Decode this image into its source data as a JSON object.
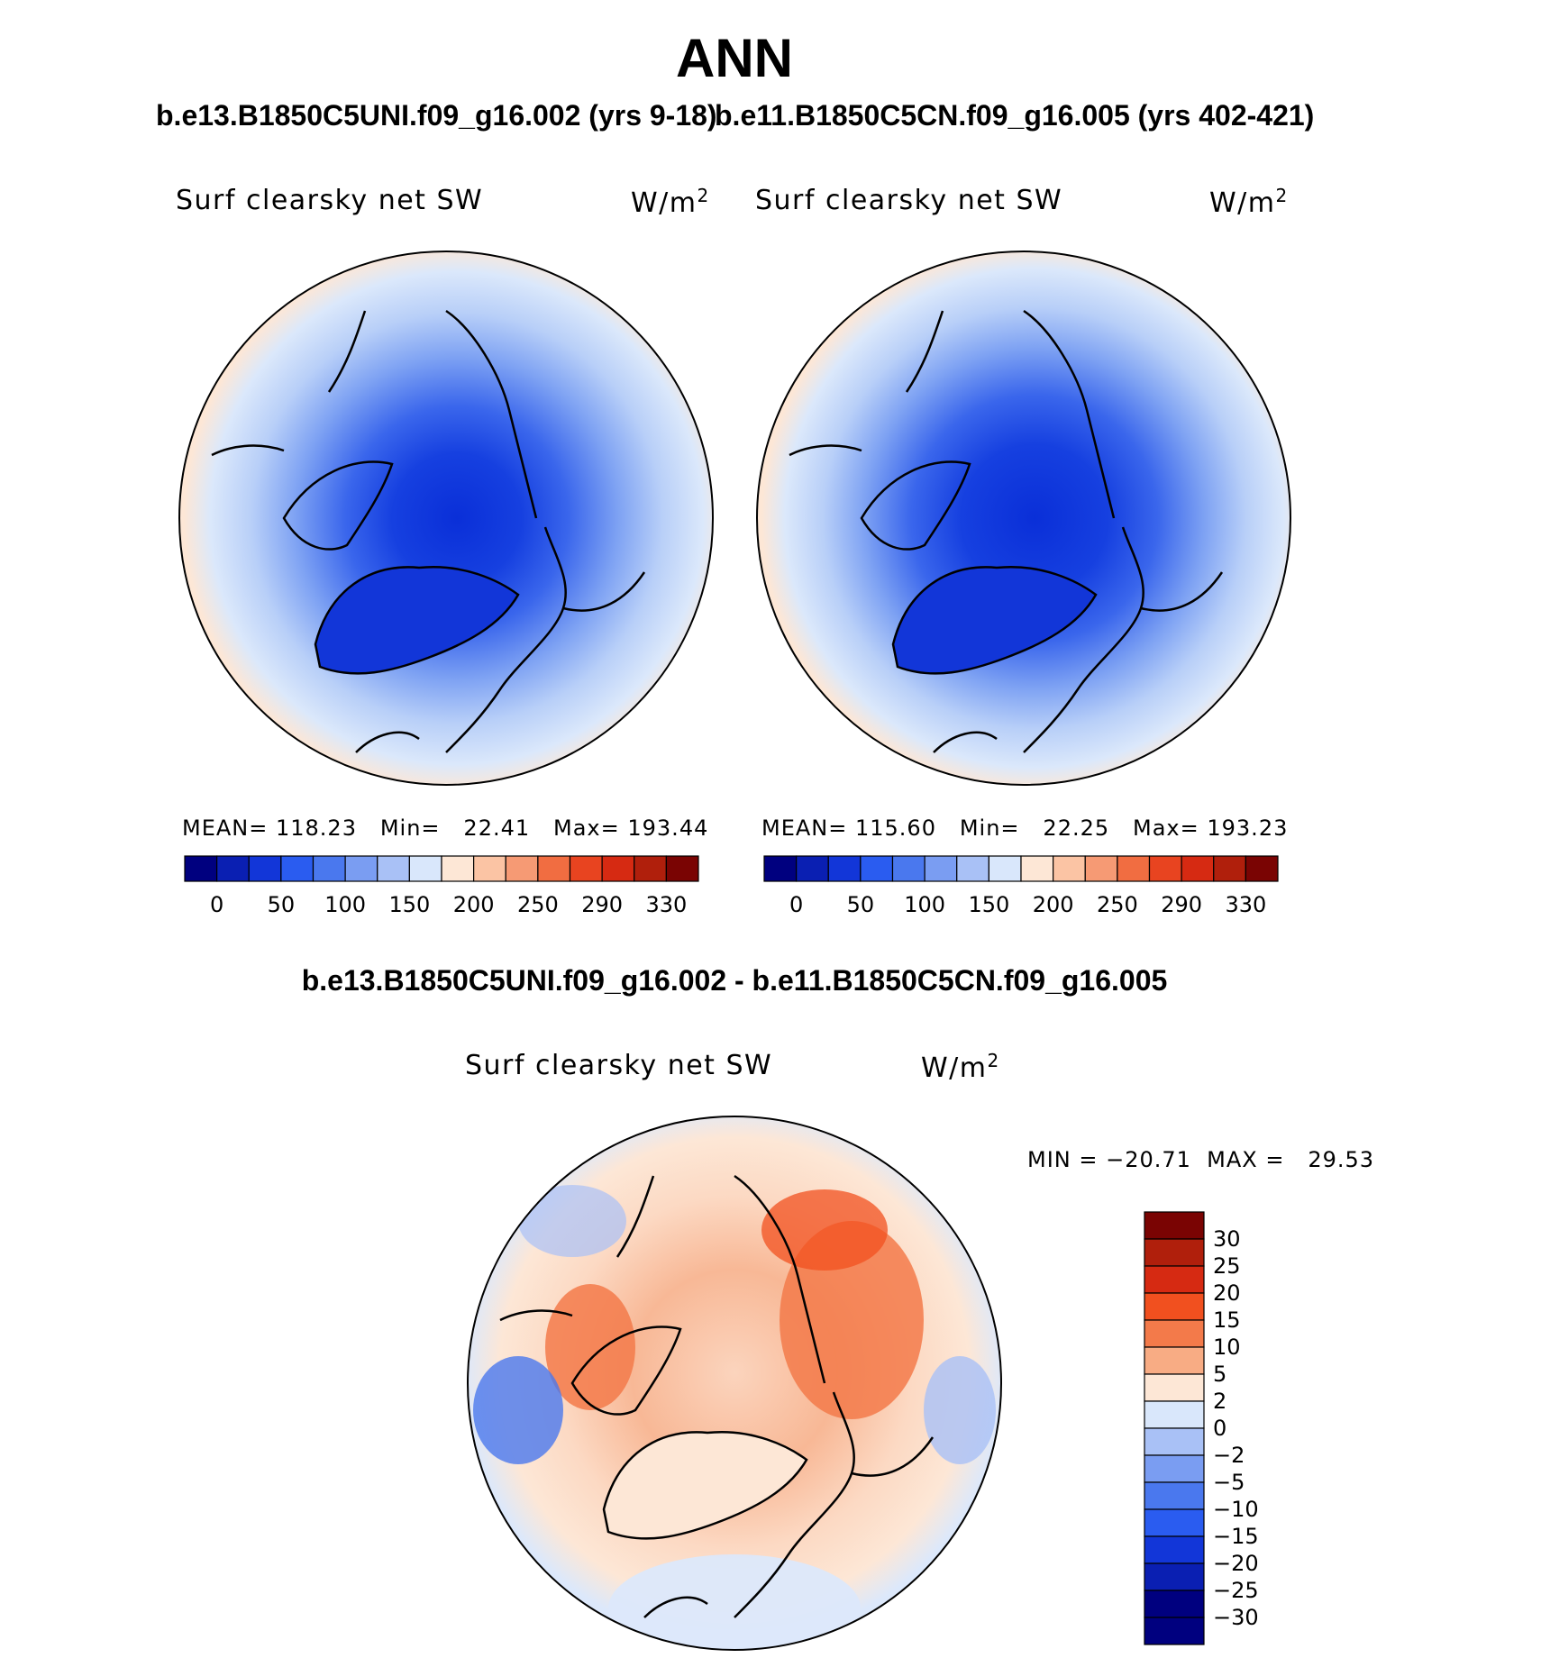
{
  "figure": {
    "season": "ANN",
    "top_left_case": "b.e13.B1850C5UNI.f09_g16.002 (yrs 9-18)",
    "top_right_case": "b.e11.B1850C5CN.f09_g16.005 (yrs 402-421)",
    "diff_title": "b.e13.B1850C5UNI.f09_g16.002 - b.e11.B1850C5CN.f09_g16.005"
  },
  "panels": {
    "left": {
      "variable": "Surf clearsky net SW",
      "units": "W/m",
      "units_exp": "2",
      "stats": "MEAN= 118.23   Min=   22.41   Max= 193.44"
    },
    "right": {
      "variable": "Surf clearsky net SW",
      "units": "W/m",
      "units_exp": "2",
      "stats": "MEAN= 115.60   Min=   22.25   Max= 193.23"
    },
    "diff": {
      "variable": "Surf clearsky net SW",
      "units": "W/m",
      "units_exp": "2",
      "stats": "MIN = −20.71  MAX =   29.53"
    }
  },
  "colorbar_abs": {
    "labels": [
      "0",
      "50",
      "100",
      "150",
      "200",
      "250",
      "290",
      "330"
    ],
    "colors": [
      "#00007f",
      "#0a1fb2",
      "#1236d8",
      "#2a5cf0",
      "#4a78ee",
      "#7a9df2",
      "#a9c1f6",
      "#d9e7fb",
      "#fde7d6",
      "#fbc4a4",
      "#f69a74",
      "#f16d41",
      "#e84420",
      "#d62a12",
      "#b01f0c",
      "#7a0403"
    ]
  },
  "colorbar_diff": {
    "labels": [
      "30",
      "25",
      "20",
      "15",
      "10",
      "5",
      "2",
      "0",
      "−2",
      "−5",
      "−10",
      "−15",
      "−20",
      "−25",
      "−30"
    ],
    "colors": [
      "#7a0403",
      "#b01f0c",
      "#d62a12",
      "#f1501f",
      "#f37a4a",
      "#f8ac84",
      "#fde7d6",
      "#d9e7fb",
      "#a9c1f6",
      "#7a9df2",
      "#4a78ee",
      "#2a5cf0",
      "#1236d8",
      "#0a1fb2",
      "#00007f"
    ]
  }
}
